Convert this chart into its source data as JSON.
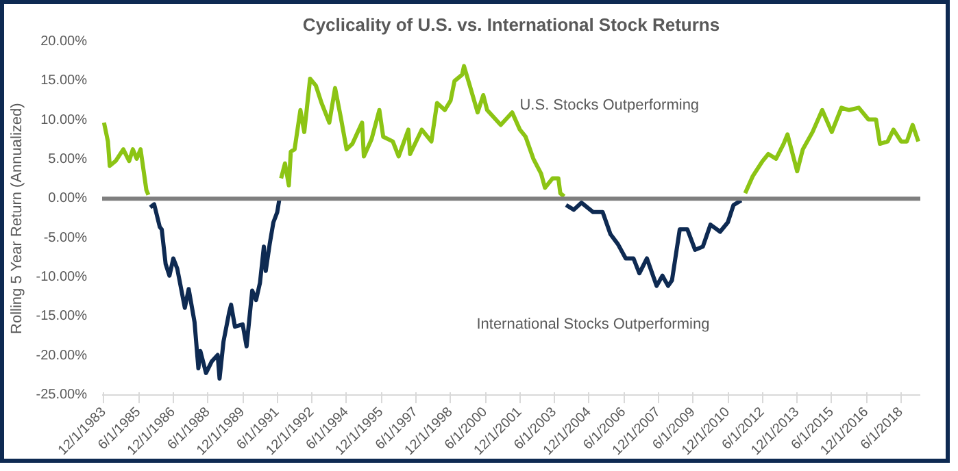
{
  "chart_data": {
    "type": "line",
    "title": "Cyclicality of U.S. vs. International Stock Returns",
    "ylabel": "Rolling 5 Year Return (Annualized)",
    "annotations": [
      "U.S. Stocks Outperforming",
      "International Stocks Outperforming"
    ],
    "xlim": [
      "1983-11",
      "2019-04"
    ],
    "ylim": [
      -25,
      20
    ],
    "xticks": [
      {
        "value": "1983-12-01",
        "label": "12/1/1983"
      },
      {
        "value": "1985-06-01",
        "label": "6/1/1985"
      },
      {
        "value": "1986-12-01",
        "label": "12/1/1986"
      },
      {
        "value": "1988-06-01",
        "label": "6/1/1988"
      },
      {
        "value": "1989-12-01",
        "label": "12/1/1989"
      },
      {
        "value": "1991-06-01",
        "label": "6/1/1991"
      },
      {
        "value": "1992-12-01",
        "label": "12/1/1992"
      },
      {
        "value": "1994-06-01",
        "label": "6/1/1994"
      },
      {
        "value": "1995-12-01",
        "label": "12/1/1995"
      },
      {
        "value": "1997-06-01",
        "label": "6/1/1997"
      },
      {
        "value": "1998-12-01",
        "label": "12/1/1998"
      },
      {
        "value": "2000-06-01",
        "label": "6/1/2000"
      },
      {
        "value": "2001-12-01",
        "label": "12/1/2001"
      },
      {
        "value": "2003-06-01",
        "label": "6/1/2003"
      },
      {
        "value": "2004-12-01",
        "label": "12/1/2004"
      },
      {
        "value": "2006-06-01",
        "label": "6/1/2006"
      },
      {
        "value": "2007-12-01",
        "label": "12/1/2007"
      },
      {
        "value": "2009-06-01",
        "label": "6/1/2009"
      },
      {
        "value": "2010-12-01",
        "label": "12/1/2010"
      },
      {
        "value": "2012-06-01",
        "label": "6/1/2012"
      },
      {
        "value": "2013-12-01",
        "label": "12/1/2013"
      },
      {
        "value": "2015-06-01",
        "label": "6/1/2015"
      },
      {
        "value": "2016-12-01",
        "label": "12/1/2016"
      },
      {
        "value": "2018-06-01",
        "label": "6/1/2018"
      }
    ],
    "yticks": [
      {
        "value": -25,
        "label": "-25.00%"
      },
      {
        "value": -20,
        "label": "-20.00%"
      },
      {
        "value": -15,
        "label": "-15.00%"
      },
      {
        "value": -10,
        "label": "-10.00%"
      },
      {
        "value": -5,
        "label": "-5.00%"
      },
      {
        "value": 0,
        "label": "0.00%"
      },
      {
        "value": 5,
        "label": "5.00%"
      },
      {
        "value": 10,
        "label": "10.00%"
      },
      {
        "value": 15,
        "label": "15.00%"
      },
      {
        "value": 20,
        "label": "20.00%"
      }
    ],
    "grid": false,
    "ref_lines": [
      {
        "axis": "y",
        "value": 0,
        "color": "#7f7f7f"
      }
    ],
    "series": [
      {
        "color": "#8cc414",
        "x": [
          "1983-12",
          "1984-02",
          "1984-03",
          "1984-06",
          "1984-10",
          "1985-01",
          "1985-03",
          "1985-05",
          "1985-07",
          "1985-10",
          "1985-11",
          null,
          "1991-08",
          "1991-10",
          "1991-12",
          "1992-01",
          "1992-03",
          "1992-06",
          "1992-08",
          "1992-11",
          "1993-02",
          "1993-05",
          "1993-09",
          "1993-12",
          "1994-03",
          "1994-06",
          "1994-09",
          "1995-02",
          "1995-03",
          "1995-07",
          "1995-11",
          "1996-01",
          "1996-06",
          "1996-09",
          "1997-02",
          "1997-03",
          "1997-09",
          "1998-02",
          "1998-05",
          "1998-09",
          "1998-12",
          "1999-02",
          "1999-06",
          "1999-07",
          "1999-10",
          "2000-02",
          "2000-05",
          "2000-07",
          "2001-02",
          "2001-08",
          "2001-12",
          "2002-03",
          "2002-07",
          "2002-11",
          "2003-01",
          "2003-05",
          "2003-08",
          "2003-09",
          "2003-11",
          null,
          "2011-09",
          "2012-01",
          "2012-06",
          "2012-09",
          "2013-01",
          "2013-05",
          "2013-07",
          "2013-12",
          "2014-03",
          "2014-08",
          "2015-01",
          "2015-06",
          "2015-11",
          "2016-03",
          "2016-08",
          "2017-01",
          "2017-05",
          "2017-07",
          "2017-11",
          "2018-02",
          "2018-06",
          "2018-09",
          "2018-12",
          "2019-03"
        ],
        "values": [
          9.7,
          7.3,
          4.2,
          4.8,
          6.3,
          4.8,
          6.3,
          5.1,
          6.3,
          1.1,
          0.5,
          null,
          2.6,
          4.5,
          1.7,
          6.0,
          6.3,
          11.3,
          8.5,
          15.3,
          14.4,
          12.2,
          9.7,
          14.1,
          10.4,
          6.3,
          7.0,
          9.7,
          5.4,
          7.6,
          11.3,
          7.9,
          7.3,
          5.4,
          8.8,
          5.7,
          8.8,
          7.3,
          12.2,
          11.3,
          12.5,
          15.0,
          15.8,
          16.9,
          14.4,
          11.0,
          13.2,
          11.3,
          9.4,
          11.0,
          8.8,
          7.9,
          5.1,
          3.2,
          1.4,
          2.6,
          2.6,
          0.7,
          0.3,
          null,
          0.7,
          2.9,
          4.8,
          5.7,
          5.1,
          7.0,
          8.2,
          3.5,
          6.3,
          8.5,
          11.3,
          8.5,
          11.6,
          11.3,
          11.6,
          10.1,
          10.1,
          7.0,
          7.3,
          8.8,
          7.3,
          7.3,
          9.4,
          7.3
        ]
      },
      {
        "color": "#0e2a52",
        "x": [
          "1985-12",
          "1986-02",
          "1986-05",
          "1986-06",
          "1986-08",
          "1986-10",
          "1986-12",
          "1987-02",
          "1987-06",
          "1987-08",
          "1987-11",
          "1988-01",
          "1988-02",
          "1988-05",
          "1988-08",
          "1988-11",
          "1988-12",
          "1989-02",
          "1989-05",
          "1989-06",
          "1989-08",
          "1989-12",
          "1990-02",
          "1990-05",
          "1990-07",
          "1990-09",
          "1990-11",
          "1990-12",
          "1991-02",
          "1991-04",
          "1991-06",
          "1991-07",
          null,
          "2003-12",
          "2004-04",
          "2004-08",
          "2005-02",
          "2005-07",
          "2005-11",
          "2006-03",
          "2006-07",
          "2006-11",
          "2007-02",
          "2007-06",
          "2007-11",
          "2008-02",
          "2008-05",
          "2008-07",
          "2008-11",
          "2009-03",
          "2009-07",
          "2009-11",
          "2010-03",
          "2010-08",
          "2010-12",
          "2011-03",
          "2011-07"
        ],
        "values": [
          -1.1,
          -0.7,
          -3.6,
          -3.9,
          -8.3,
          -9.8,
          -7.6,
          -8.9,
          -13.9,
          -11.5,
          -15.7,
          -21.6,
          -19.4,
          -22.2,
          -20.7,
          -19.9,
          -22.9,
          -18.2,
          -14.5,
          -13.5,
          -16.3,
          -16.0,
          -18.8,
          -11.7,
          -12.9,
          -10.7,
          -6.1,
          -9.2,
          -5.8,
          -3.0,
          -1.7,
          -0.2,
          null,
          -0.8,
          -1.4,
          -0.5,
          -1.7,
          -1.7,
          -4.5,
          -5.8,
          -7.6,
          -7.6,
          -9.5,
          -7.6,
          -11.1,
          -9.8,
          -11.1,
          -10.4,
          -3.9,
          -3.9,
          -6.5,
          -6.1,
          -3.3,
          -4.2,
          -3.0,
          -0.8,
          -0.2
        ]
      }
    ]
  }
}
